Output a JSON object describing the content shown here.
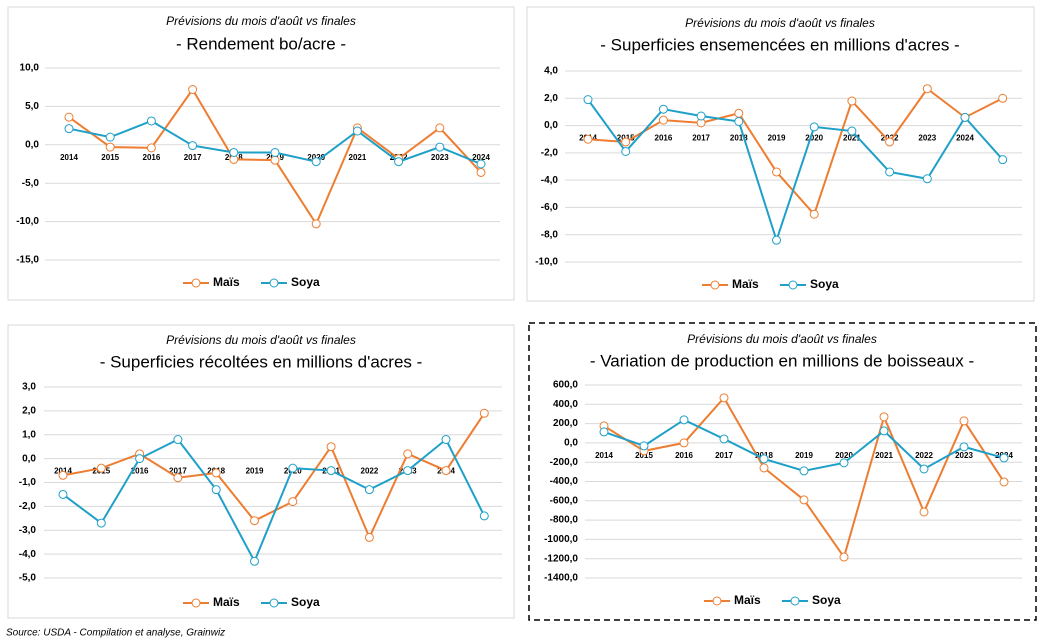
{
  "chart_data": [
    {
      "type": "line",
      "subtitle": "Prévisions du mois d'août vs finales",
      "title": "- Rendement bo/acre -",
      "categories": [
        "2014",
        "2015",
        "2016",
        "2017",
        "2018",
        "2019",
        "2020",
        "2021",
        "2022",
        "2023",
        "2024"
      ],
      "series": [
        {
          "name": "Maïs",
          "color": "#ed7d31",
          "values": [
            3.6,
            -0.3,
            -0.4,
            7.2,
            -1.9,
            -2.0,
            -10.3,
            2.2,
            -1.8,
            2.2,
            -3.6
          ]
        },
        {
          "name": "Soya",
          "color": "#1fa0c8",
          "values": [
            2.1,
            1.0,
            3.1,
            -0.1,
            -1.0,
            -1.0,
            -2.2,
            1.8,
            -2.2,
            -0.3,
            -2.5
          ]
        }
      ],
      "ylim": [
        -15,
        10
      ],
      "yticks": [
        {
          "value": 10,
          "label": "10,0"
        },
        {
          "value": 5,
          "label": "5,0"
        },
        {
          "value": 0,
          "label": "0,0"
        },
        {
          "value": -5,
          "label": "-5,0"
        },
        {
          "value": -10,
          "label": "-10,0"
        },
        {
          "value": -15,
          "label": "-15,0"
        }
      ],
      "grid": true
    },
    {
      "type": "line",
      "subtitle": "Prévisions du mois d'août vs finales",
      "title": "- Superficies ensemencées en millions d'acres -",
      "categories": [
        "2014",
        "2015",
        "2016",
        "2017",
        "2018",
        "2019",
        "2020",
        "2021",
        "2022",
        "2023",
        "2024",
        null
      ],
      "series": [
        {
          "name": "Maïs",
          "color": "#ed7d31",
          "values": [
            -1.0,
            -1.2,
            0.4,
            0.2,
            0.9,
            -3.4,
            -6.5,
            1.8,
            -1.2,
            2.7,
            0.6,
            2.0
          ]
        },
        {
          "name": "Soya",
          "color": "#1fa0c8",
          "values": [
            1.9,
            -1.9,
            1.2,
            0.7,
            0.3,
            -8.4,
            -0.1,
            -0.4,
            -3.4,
            -3.9,
            0.6,
            -2.5
          ]
        }
      ],
      "ylim": [
        -10,
        4
      ],
      "yticks": [
        {
          "value": 4,
          "label": "4,0"
        },
        {
          "value": 2,
          "label": "2,0"
        },
        {
          "value": 0,
          "label": "0,0"
        },
        {
          "value": -2,
          "label": "-2,0"
        },
        {
          "value": -4,
          "label": "-4,0"
        },
        {
          "value": -6,
          "label": "-6,0"
        },
        {
          "value": -8,
          "label": "-8,0"
        },
        {
          "value": -10,
          "label": "-10,0"
        }
      ],
      "grid": true
    },
    {
      "type": "line",
      "subtitle": "Prévisions du mois d'août vs finales",
      "title": "- Superficies récoltées en millions d'acres -",
      "categories": [
        "2014",
        "2015",
        "2016",
        "2017",
        "2018",
        "2019",
        "2020",
        "2021",
        "2022",
        "2023",
        "2024",
        null
      ],
      "series": [
        {
          "name": "Maïs",
          "color": "#ed7d31",
          "values": [
            -0.7,
            -0.4,
            0.2,
            -0.8,
            -0.6,
            -2.6,
            -1.8,
            0.5,
            -3.3,
            0.2,
            -0.5,
            1.9
          ]
        },
        {
          "name": "Soya",
          "color": "#1fa0c8",
          "values": [
            -1.5,
            -2.7,
            0.0,
            0.8,
            -1.3,
            -4.3,
            -0.4,
            -0.5,
            -1.3,
            -0.5,
            0.8,
            -2.4
          ]
        }
      ],
      "ylim": [
        -5,
        3
      ],
      "yticks": [
        {
          "value": 3,
          "label": "3,0"
        },
        {
          "value": 2,
          "label": "2,0"
        },
        {
          "value": 1,
          "label": "1,0"
        },
        {
          "value": 0,
          "label": "0,0"
        },
        {
          "value": -1,
          "label": "-1,0"
        },
        {
          "value": -2,
          "label": "-2,0"
        },
        {
          "value": -3,
          "label": "-3,0"
        },
        {
          "value": -4,
          "label": "-4,0"
        },
        {
          "value": -5,
          "label": "-5,0"
        }
      ],
      "grid": true
    },
    {
      "type": "line",
      "subtitle": "Prévisions du mois d'août vs finales",
      "title": "- Variation de production en millions de boisseaux -",
      "categories": [
        "2014",
        "2015",
        "2016",
        "2017",
        "2018",
        "2019",
        "2020",
        "2021",
        "2022",
        "2023",
        "2024"
      ],
      "series": [
        {
          "name": "Maïs",
          "color": "#ed7d31",
          "values": [
            176,
            -83,
            0,
            467,
            -259,
            -591,
            -1183,
            270,
            -716,
            228,
            -405
          ]
        },
        {
          "name": "Soya",
          "color": "#1fa0c8",
          "values": [
            114,
            -31,
            239,
            41,
            -166,
            -290,
            -207,
            124,
            -270,
            -41,
            -156
          ]
        }
      ],
      "ylim": [
        -1400,
        600
      ],
      "yticks": [
        {
          "value": 600,
          "label": "600,0"
        },
        {
          "value": 400,
          "label": "400,0"
        },
        {
          "value": 200,
          "label": "200,0"
        },
        {
          "value": 0,
          "label": "0,0"
        },
        {
          "value": -200,
          "label": "-200,0"
        },
        {
          "value": -400,
          "label": "-400,0"
        },
        {
          "value": -600,
          "label": "-600,0"
        },
        {
          "value": -800,
          "label": "-800,0"
        },
        {
          "value": -1000,
          "label": "-1000,0"
        },
        {
          "value": -1200,
          "label": "-1200,0"
        },
        {
          "value": -1400,
          "label": "-1400,0"
        }
      ],
      "grid": true
    }
  ],
  "source": "Source: USDA - Compilation et analyse, Grainwiz"
}
